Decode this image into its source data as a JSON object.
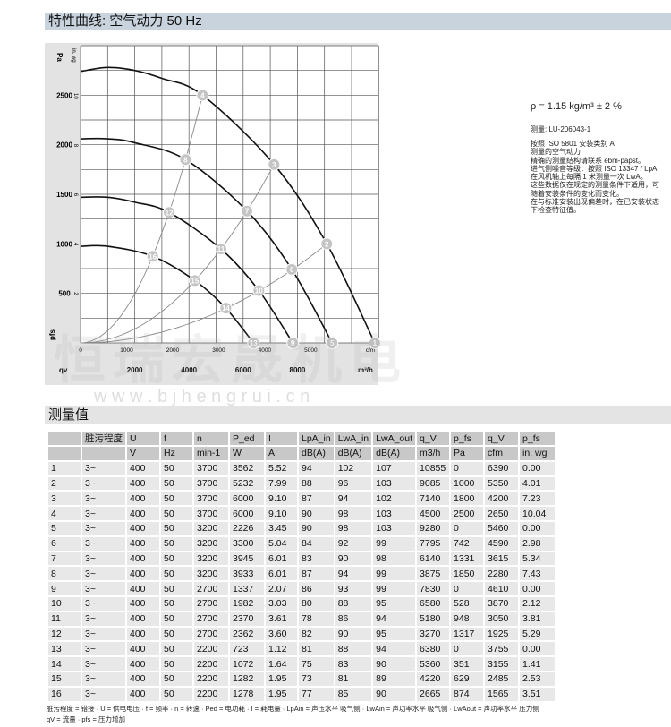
{
  "header": {
    "title": "特性曲线: 空气动力 50 Hz"
  },
  "info": {
    "density": "ρ = 1.15 kg/m³ ± 2 %",
    "measurement": "测量: LU-206043-1",
    "notes": "按照 ISO 5801 安装类别 A\n测量的空气动力\n精确的测量结构请联系 ebm-papst。\n进气侧噪音等级：按照 ISO 13347 / LpA 在风机轴上每隔 1 米测量一次 LwA。\n这些数据仅在规定的测量条件下适用，可随着安装条件的变化而变化。\n在与标准安装出现偏差时，在已安装状态下检查特征值。"
  },
  "watermark": {
    "text": "恒瑞宏晟机电",
    "url": "w w w . b j h e n g r u i . c n"
  },
  "chart_data": {
    "type": "line",
    "title": "特性曲线: 空气动力 50 Hz",
    "y_axis_left": {
      "label": "Pa",
      "ticks": [
        500,
        1000,
        1500,
        2000,
        2500
      ],
      "range": [
        0,
        3000
      ]
    },
    "y_axis_inner": {
      "label": "in. wg",
      "ticks": [
        2,
        4,
        6,
        8,
        10
      ]
    },
    "y_symbol": "pfs",
    "x_axis_inner": {
      "label": "cfm",
      "ticks": [
        0,
        1000,
        2000,
        3000,
        4000,
        5000
      ]
    },
    "x_axis": {
      "label": "m³/h",
      "symbol": "qv",
      "ticks": [
        2000,
        4000,
        6000,
        8000
      ],
      "range": [
        0,
        11000
      ]
    },
    "grid": true,
    "speed_curves": [
      {
        "rpm": 3700,
        "points": [
          [
            0,
            2740
          ],
          [
            1000,
            2780
          ],
          [
            2000,
            2750
          ],
          [
            3000,
            2670
          ],
          [
            4500,
            2500
          ],
          [
            7140,
            1800
          ],
          [
            9085,
            1000
          ],
          [
            10855,
            0
          ]
        ]
      },
      {
        "rpm": 3200,
        "points": [
          [
            0,
            2060
          ],
          [
            1000,
            2060
          ],
          [
            2000,
            2020
          ],
          [
            3875,
            1850
          ],
          [
            6140,
            1331
          ],
          [
            7795,
            742
          ],
          [
            9280,
            0
          ]
        ]
      },
      {
        "rpm": 2700,
        "points": [
          [
            0,
            1470
          ],
          [
            1000,
            1470
          ],
          [
            2000,
            1420
          ],
          [
            3270,
            1317
          ],
          [
            5180,
            948
          ],
          [
            6580,
            528
          ],
          [
            7830,
            0
          ]
        ]
      },
      {
        "rpm": 2200,
        "points": [
          [
            0,
            975
          ],
          [
            1000,
            975
          ],
          [
            2665,
            874
          ],
          [
            4220,
            629
          ],
          [
            5360,
            351
          ],
          [
            6380,
            0
          ]
        ]
      }
    ],
    "system_lines": [
      [
        4,
        8,
        12,
        16
      ],
      [
        3,
        7,
        11,
        15
      ],
      [
        2,
        6,
        10,
        14
      ]
    ],
    "operating_points": [
      {
        "id": 1,
        "qv": 10855,
        "pfs": 0
      },
      {
        "id": 2,
        "qv": 9085,
        "pfs": 1000
      },
      {
        "id": 3,
        "qv": 7140,
        "pfs": 1800
      },
      {
        "id": 4,
        "qv": 4500,
        "pfs": 2500
      },
      {
        "id": 5,
        "qv": 9280,
        "pfs": 0
      },
      {
        "id": 6,
        "qv": 7795,
        "pfs": 742
      },
      {
        "id": 7,
        "qv": 6140,
        "pfs": 1331
      },
      {
        "id": 8,
        "qv": 3875,
        "pfs": 1850
      },
      {
        "id": 9,
        "qv": 7830,
        "pfs": 0
      },
      {
        "id": 10,
        "qv": 6580,
        "pfs": 528
      },
      {
        "id": 11,
        "qv": 5180,
        "pfs": 948
      },
      {
        "id": 12,
        "qv": 3270,
        "pfs": 1317
      },
      {
        "id": 13,
        "qv": 6380,
        "pfs": 0
      },
      {
        "id": 14,
        "qv": 5360,
        "pfs": 351
      },
      {
        "id": 15,
        "qv": 4220,
        "pfs": 629
      },
      {
        "id": 16,
        "qv": 2665,
        "pfs": 874
      }
    ]
  },
  "measurements": {
    "title": "测量值",
    "headers": [
      "",
      "脏污程度",
      "U",
      "f",
      "n",
      "P_ed",
      "I",
      "LpA_in",
      "LwA_in",
      "LwA_out",
      "q_V",
      "p_fs",
      "q_V",
      "p_fs"
    ],
    "units": [
      "",
      "",
      "V",
      "Hz",
      "min-1",
      "W",
      "A",
      "dB(A)",
      "dB(A)",
      "dB(A)",
      "m3/h",
      "Pa",
      "cfm",
      "in. wg"
    ],
    "rows": [
      [
        "1",
        "3~",
        "400",
        "50",
        "3700",
        "3562",
        "5.52",
        "94",
        "102",
        "107",
        "10855",
        "0",
        "6390",
        "0.00"
      ],
      [
        "2",
        "3~",
        "400",
        "50",
        "3700",
        "5232",
        "7.99",
        "88",
        "96",
        "103",
        "9085",
        "1000",
        "5350",
        "4.01"
      ],
      [
        "3",
        "3~",
        "400",
        "50",
        "3700",
        "6000",
        "9.10",
        "87",
        "94",
        "102",
        "7140",
        "1800",
        "4200",
        "7.23"
      ],
      [
        "4",
        "3~",
        "400",
        "50",
        "3700",
        "6000",
        "9.10",
        "90",
        "98",
        "103",
        "4500",
        "2500",
        "2650",
        "10.04"
      ],
      [
        "5",
        "3~",
        "400",
        "50",
        "3200",
        "2226",
        "3.45",
        "90",
        "98",
        "103",
        "9280",
        "0",
        "5460",
        "0.00"
      ],
      [
        "6",
        "3~",
        "400",
        "50",
        "3200",
        "3300",
        "5.04",
        "84",
        "92",
        "99",
        "7795",
        "742",
        "4590",
        "2.98"
      ],
      [
        "7",
        "3~",
        "400",
        "50",
        "3200",
        "3945",
        "6.01",
        "83",
        "90",
        "98",
        "6140",
        "1331",
        "3615",
        "5.34"
      ],
      [
        "8",
        "3~",
        "400",
        "50",
        "3200",
        "3933",
        "6.01",
        "87",
        "94",
        "99",
        "3875",
        "1850",
        "2280",
        "7.43"
      ],
      [
        "9",
        "3~",
        "400",
        "50",
        "2700",
        "1337",
        "2.07",
        "86",
        "93",
        "99",
        "7830",
        "0",
        "4610",
        "0.00"
      ],
      [
        "10",
        "3~",
        "400",
        "50",
        "2700",
        "1982",
        "3.03",
        "80",
        "88",
        "95",
        "6580",
        "528",
        "3870",
        "2.12"
      ],
      [
        "11",
        "3~",
        "400",
        "50",
        "2700",
        "2370",
        "3.61",
        "78",
        "86",
        "94",
        "5180",
        "948",
        "3050",
        "3.81"
      ],
      [
        "12",
        "3~",
        "400",
        "50",
        "2700",
        "2362",
        "3.60",
        "82",
        "90",
        "95",
        "3270",
        "1317",
        "1925",
        "5.29"
      ],
      [
        "13",
        "3~",
        "400",
        "50",
        "2200",
        "723",
        "1.12",
        "81",
        "88",
        "94",
        "6380",
        "0",
        "3755",
        "0.00"
      ],
      [
        "14",
        "3~",
        "400",
        "50",
        "2200",
        "1072",
        "1.64",
        "75",
        "83",
        "90",
        "5360",
        "351",
        "3155",
        "1.41"
      ],
      [
        "15",
        "3~",
        "400",
        "50",
        "2200",
        "1282",
        "1.95",
        "73",
        "81",
        "89",
        "4220",
        "629",
        "2485",
        "2.53"
      ],
      [
        "16",
        "3~",
        "400",
        "50",
        "2200",
        "1278",
        "1.95",
        "77",
        "85",
        "90",
        "2665",
        "874",
        "1565",
        "3.51"
      ]
    ],
    "legend": "脏污程度 = 错接 · U = 供电电压 · f = 频率 · n = 转速 · Ped = 电功耗 · I = 耗电量 · LpAin = 声压水平 吸气侧 · LwAin = 声功率水平 吸气侧 · LwAout = 声功率水平 压力侧\nqV = 流量 · pfs = 压力增加"
  }
}
